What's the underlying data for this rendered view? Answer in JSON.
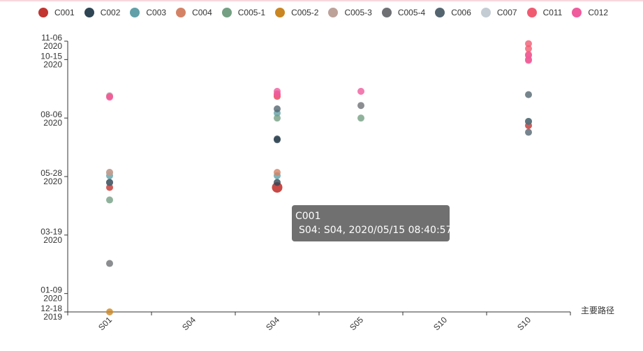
{
  "legend": [
    {
      "name": "C001",
      "color": "#c23531"
    },
    {
      "name": "C002",
      "color": "#2f4554"
    },
    {
      "name": "C003",
      "color": "#61a0a8"
    },
    {
      "name": "C004",
      "color": "#d48265"
    },
    {
      "name": "C005-1",
      "color": "#749f83"
    },
    {
      "name": "C005-2",
      "color": "#ca8622"
    },
    {
      "name": "C005-3",
      "color": "#bda29a"
    },
    {
      "name": "C005-4",
      "color": "#6e7074"
    },
    {
      "name": "C006",
      "color": "#546570"
    },
    {
      "name": "C007",
      "color": "#c4ccd3"
    },
    {
      "name": "C011",
      "color": "#f05b72"
    },
    {
      "name": "C012",
      "color": "#ef5b9c"
    }
  ],
  "tooltip": {
    "title": "C001",
    "color": "#c23531",
    "text": "S04: S04, 2020/05/15 08:40:57"
  },
  "chart_data": {
    "type": "scatter",
    "xlabel": "主要路径",
    "ylabel": "",
    "categories": [
      "S01",
      "S04",
      "S04",
      "S05",
      "S10",
      "S10"
    ],
    "y_axis_type": "time",
    "ylim": [
      "2019-12-18",
      "2020-11-06"
    ],
    "y_ticks": [
      {
        "date": "2019-12-18",
        "label": [
          "12-18",
          "2019"
        ]
      },
      {
        "date": "2020-01-09",
        "label": [
          "01-09",
          "2020"
        ]
      },
      {
        "date": "2020-03-19",
        "label": [
          "03-19",
          "2020"
        ]
      },
      {
        "date": "2020-05-28",
        "label": [
          "05-28",
          "2020"
        ]
      },
      {
        "date": "2020-08-06",
        "label": [
          "08-06",
          "2020"
        ]
      },
      {
        "date": "2020-10-15",
        "label": [
          "10-15",
          "2020"
        ]
      },
      {
        "date": "2020-11-06",
        "label": [
          "11-06",
          "2020"
        ]
      }
    ],
    "highlighted_point": {
      "series": "C001",
      "category_index": 2,
      "date": "2020-05-15"
    },
    "series": [
      {
        "name": "C001",
        "points": [
          [
            0,
            "2020-05-15"
          ],
          [
            2,
            "2020-05-15"
          ],
          [
            5,
            "2020-07-28"
          ]
        ]
      },
      {
        "name": "C002",
        "points": [
          [
            0,
            "2020-05-21"
          ],
          [
            2,
            "2020-05-21"
          ],
          [
            2,
            "2020-07-12"
          ],
          [
            2,
            "2020-07-11"
          ]
        ]
      },
      {
        "name": "C003",
        "points": [
          [
            0,
            "2020-05-29"
          ],
          [
            2,
            "2020-05-29"
          ],
          [
            2,
            "2020-08-12"
          ],
          [
            5,
            "2020-08-02"
          ]
        ]
      },
      {
        "name": "C004",
        "points": [
          [
            0,
            "2020-06-02"
          ],
          [
            2,
            "2020-06-02"
          ],
          [
            2,
            "2020-09-01"
          ]
        ]
      },
      {
        "name": "C005-1",
        "points": [
          [
            0,
            "2020-04-30"
          ],
          [
            2,
            "2020-08-06"
          ],
          [
            3,
            "2020-08-06"
          ]
        ]
      },
      {
        "name": "C005-2",
        "points": [
          [
            0,
            "2019-12-18"
          ]
        ]
      },
      {
        "name": "C005-3",
        "points": [
          [
            0,
            "2020-06-02"
          ]
        ]
      },
      {
        "name": "C005-4",
        "points": [
          [
            0,
            "2020-02-14"
          ],
          [
            3,
            "2020-08-21"
          ]
        ]
      },
      {
        "name": "C006",
        "points": [
          [
            0,
            "2020-05-21"
          ],
          [
            2,
            "2020-08-17"
          ],
          [
            5,
            "2020-07-20"
          ],
          [
            5,
            "2020-08-02"
          ],
          [
            5,
            "2020-09-03"
          ]
        ]
      },
      {
        "name": "C007",
        "points": [
          [
            0,
            "2020-09-02"
          ]
        ]
      },
      {
        "name": "C011",
        "points": [
          [
            0,
            "2020-09-01"
          ],
          [
            2,
            "2020-09-01"
          ],
          [
            2,
            "2020-09-03"
          ],
          [
            5,
            "2020-10-15"
          ],
          [
            5,
            "2020-10-21"
          ],
          [
            5,
            "2020-10-28"
          ],
          [
            5,
            "2020-11-03"
          ]
        ]
      },
      {
        "name": "C012",
        "points": [
          [
            0,
            "2020-08-31"
          ],
          [
            2,
            "2020-09-04"
          ],
          [
            2,
            "2020-09-07"
          ],
          [
            3,
            "2020-09-07"
          ],
          [
            5,
            "2020-10-20"
          ],
          [
            5,
            "2020-10-14"
          ]
        ]
      }
    ]
  }
}
